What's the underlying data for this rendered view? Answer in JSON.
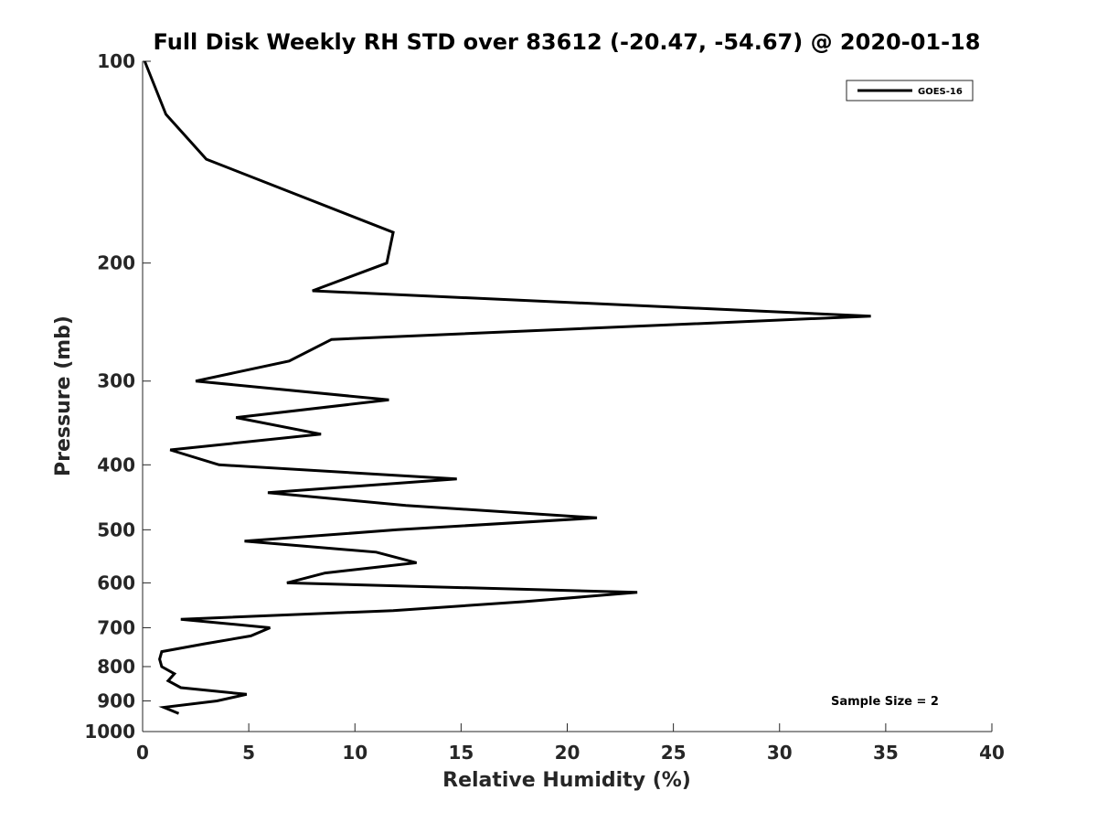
{
  "chart_data": {
    "type": "line",
    "title": "Full Disk Weekly RH STD over 83612 (-20.47, -54.67) @ 2020-01-18",
    "xlabel": "Relative Humidity (%)",
    "ylabel": "Pressure (mb)",
    "xlim": [
      0,
      40
    ],
    "ylim": [
      100,
      1000
    ],
    "yscale": "log",
    "y_reversed": true,
    "xticks": [
      0,
      5,
      10,
      15,
      20,
      25,
      30,
      35,
      40
    ],
    "xtick_labels": [
      "0",
      "5",
      "10",
      "15",
      "20",
      "25",
      "30",
      "35",
      "40"
    ],
    "yticks": [
      100,
      200,
      300,
      400,
      500,
      600,
      700,
      800,
      900,
      1000
    ],
    "ytick_labels": [
      "100",
      "200",
      "300",
      "400",
      "500",
      "600",
      "700",
      "800",
      "900",
      "1000"
    ],
    "grid": false,
    "legend": {
      "position": "top-right",
      "entries": [
        "GOES-16"
      ]
    },
    "annotations": [
      "Sample Size = 2"
    ],
    "series": [
      {
        "name": "GOES-16",
        "color": "#000000",
        "points": [
          [
            0.1,
            100
          ],
          [
            1.1,
            120
          ],
          [
            3.0,
            140
          ],
          [
            11.8,
            180
          ],
          [
            11.5,
            200
          ],
          [
            8.0,
            220
          ],
          [
            34.3,
            240
          ],
          [
            8.9,
            260
          ],
          [
            6.9,
            280
          ],
          [
            2.5,
            300
          ],
          [
            11.6,
            320
          ],
          [
            4.4,
            340
          ],
          [
            8.4,
            360
          ],
          [
            1.3,
            380
          ],
          [
            3.6,
            400
          ],
          [
            14.8,
            420
          ],
          [
            5.9,
            440
          ],
          [
            12.4,
            460
          ],
          [
            21.4,
            480
          ],
          [
            12.0,
            500
          ],
          [
            4.8,
            520
          ],
          [
            11.0,
            540
          ],
          [
            12.9,
            560
          ],
          [
            8.6,
            580
          ],
          [
            6.8,
            600
          ],
          [
            23.3,
            620
          ],
          [
            18.0,
            640
          ],
          [
            11.8,
            660
          ],
          [
            1.8,
            680
          ],
          [
            6.0,
            700
          ],
          [
            5.1,
            720
          ],
          [
            2.9,
            740
          ],
          [
            0.9,
            760
          ],
          [
            0.8,
            780
          ],
          [
            0.9,
            800
          ],
          [
            1.5,
            820
          ],
          [
            1.2,
            840
          ],
          [
            1.8,
            860
          ],
          [
            4.9,
            880
          ],
          [
            3.5,
            900
          ],
          [
            1.0,
            920
          ],
          [
            1.7,
            940
          ]
        ]
      }
    ]
  }
}
